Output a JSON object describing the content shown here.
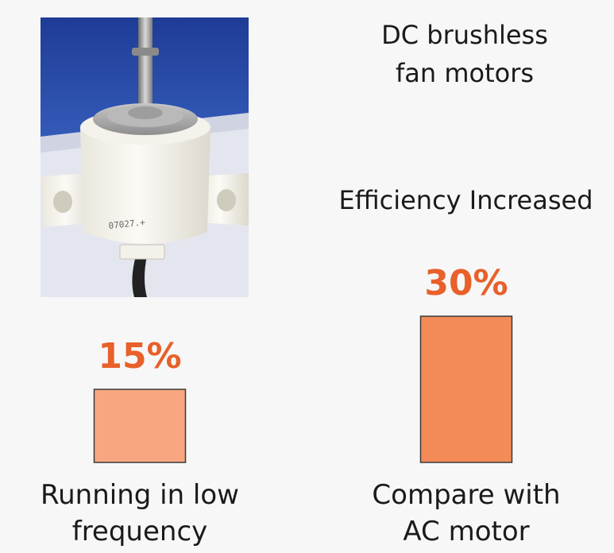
{
  "chart_data": {
    "type": "bar",
    "title": "DC brushless fan motors",
    "subtitle": "Efficiency Increased",
    "categories": [
      [
        "Running in low",
        "frequency"
      ],
      [
        "Compare with",
        "AC motor"
      ]
    ],
    "values": [
      15,
      30
    ],
    "value_labels": [
      "15%",
      "30%"
    ],
    "ylim": [
      0,
      30
    ],
    "colors": [
      "#f7a680",
      "#f28b57"
    ],
    "label_color": "#e8602a"
  },
  "header": {
    "title_line1": "DC brushless",
    "title_line2": "fan motors",
    "subtitle": "Efficiency Increased"
  },
  "image": {
    "description_icon": "fan-motor-photo"
  }
}
